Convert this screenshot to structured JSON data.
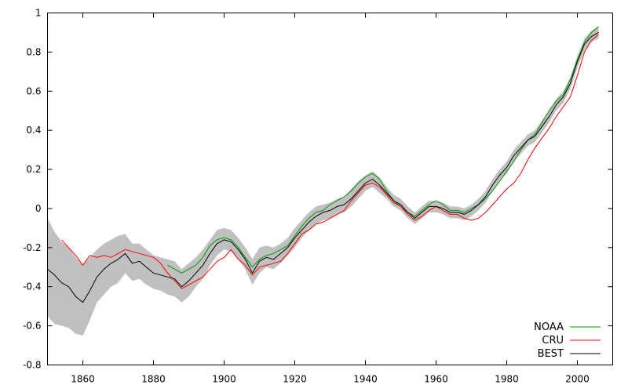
{
  "chart_data": {
    "type": "line",
    "title": "",
    "xlabel": "",
    "ylabel": "",
    "xlim": [
      1850,
      2010
    ],
    "ylim": [
      -0.8,
      1.0
    ],
    "grid": false,
    "legend_position": "bottom-right",
    "x_ticks": [
      "1860",
      "1880",
      "1900",
      "1920",
      "1940",
      "1960",
      "1980",
      "2000"
    ],
    "y_ticks": [
      "-0.8",
      "-0.6",
      "-0.4",
      "-0.2",
      "0",
      "0.2",
      "0.4",
      "0.6",
      "0.8",
      "1"
    ],
    "colors": {
      "NOAA": "#009900",
      "CRU": "#ff0000",
      "BEST": "#000000",
      "band": "#c0c0c0"
    },
    "series": [
      {
        "name": "NOAA",
        "x": [
          1884,
          1886,
          1888,
          1890,
          1892,
          1894,
          1896,
          1898,
          1900,
          1902,
          1904,
          1906,
          1908,
          1910,
          1912,
          1914,
          1916,
          1918,
          1920,
          1922,
          1924,
          1926,
          1928,
          1930,
          1932,
          1934,
          1936,
          1938,
          1940,
          1942,
          1944,
          1946,
          1948,
          1950,
          1952,
          1954,
          1956,
          1958,
          1960,
          1962,
          1964,
          1966,
          1968,
          1970,
          1972,
          1974,
          1976,
          1978,
          1980,
          1982,
          1984,
          1986,
          1988,
          1990,
          1992,
          1994,
          1996,
          1998,
          2000,
          2002,
          2004,
          2006
        ],
        "y": [
          -0.29,
          -0.31,
          -0.33,
          -0.31,
          -0.29,
          -0.25,
          -0.19,
          -0.16,
          -0.15,
          -0.16,
          -0.2,
          -0.25,
          -0.3,
          -0.26,
          -0.24,
          -0.23,
          -0.21,
          -0.19,
          -0.14,
          -0.09,
          -0.05,
          -0.02,
          -0.01,
          0.02,
          0.04,
          0.06,
          0.09,
          0.13,
          0.16,
          0.18,
          0.15,
          0.09,
          0.04,
          0.01,
          -0.02,
          -0.04,
          -0.01,
          0.02,
          0.04,
          0.02,
          -0.01,
          -0.01,
          -0.02,
          0.0,
          0.02,
          0.05,
          0.09,
          0.14,
          0.19,
          0.24,
          0.3,
          0.35,
          0.38,
          0.44,
          0.5,
          0.55,
          0.58,
          0.66,
          0.76,
          0.85,
          0.9,
          0.93
        ]
      },
      {
        "name": "CRU",
        "x": [
          1850,
          1852,
          1854,
          1856,
          1858,
          1860,
          1862,
          1864,
          1866,
          1868,
          1870,
          1872,
          1874,
          1876,
          1878,
          1880,
          1882,
          1884,
          1886,
          1888,
          1890,
          1892,
          1894,
          1896,
          1898,
          1900,
          1902,
          1904,
          1906,
          1908,
          1910,
          1912,
          1914,
          1916,
          1918,
          1920,
          1922,
          1924,
          1926,
          1928,
          1930,
          1932,
          1934,
          1936,
          1938,
          1940,
          1942,
          1944,
          1946,
          1948,
          1950,
          1952,
          1954,
          1956,
          1958,
          1960,
          1962,
          1964,
          1966,
          1968,
          1970,
          1972,
          1974,
          1976,
          1978,
          1980,
          1982,
          1984,
          1986,
          1988,
          1990,
          1992,
          1994,
          1996,
          1998,
          2000,
          2002,
          2004,
          2006
        ],
        "y": [
          null,
          null,
          -0.16,
          -0.2,
          -0.24,
          -0.29,
          -0.24,
          -0.25,
          -0.24,
          -0.25,
          -0.23,
          -0.21,
          -0.22,
          -0.23,
          -0.24,
          -0.25,
          -0.28,
          -0.33,
          -0.37,
          -0.41,
          -0.39,
          -0.37,
          -0.35,
          -0.31,
          -0.27,
          -0.25,
          -0.21,
          -0.26,
          -0.29,
          -0.34,
          -0.3,
          -0.29,
          -0.28,
          -0.27,
          -0.23,
          -0.18,
          -0.13,
          -0.11,
          -0.08,
          -0.07,
          -0.05,
          -0.03,
          -0.01,
          0.04,
          0.08,
          0.12,
          0.13,
          0.11,
          0.07,
          0.03,
          0.01,
          -0.03,
          -0.06,
          -0.04,
          -0.01,
          0.01,
          -0.01,
          -0.03,
          -0.03,
          -0.05,
          -0.06,
          -0.05,
          -0.02,
          0.02,
          0.06,
          0.1,
          0.13,
          0.18,
          0.25,
          0.31,
          0.36,
          0.41,
          0.47,
          0.52,
          0.57,
          0.68,
          0.8,
          0.86,
          0.89
        ]
      },
      {
        "name": "BEST",
        "x": [
          1850,
          1852,
          1854,
          1856,
          1858,
          1860,
          1862,
          1864,
          1866,
          1868,
          1870,
          1872,
          1874,
          1876,
          1878,
          1880,
          1882,
          1884,
          1886,
          1888,
          1890,
          1892,
          1894,
          1896,
          1898,
          1900,
          1902,
          1904,
          1906,
          1908,
          1910,
          1912,
          1914,
          1916,
          1918,
          1920,
          1922,
          1924,
          1926,
          1928,
          1930,
          1932,
          1934,
          1936,
          1938,
          1940,
          1942,
          1944,
          1946,
          1948,
          1950,
          1952,
          1954,
          1956,
          1958,
          1960,
          1962,
          1964,
          1966,
          1968,
          1970,
          1972,
          1974,
          1976,
          1978,
          1980,
          1982,
          1984,
          1986,
          1988,
          1990,
          1992,
          1994,
          1996,
          1998,
          2000,
          2002,
          2004,
          2006
        ],
        "y": [
          -0.31,
          -0.34,
          -0.38,
          -0.4,
          -0.45,
          -0.48,
          -0.42,
          -0.35,
          -0.31,
          -0.28,
          -0.26,
          -0.23,
          -0.28,
          -0.27,
          -0.3,
          -0.33,
          -0.34,
          -0.35,
          -0.36,
          -0.4,
          -0.37,
          -0.33,
          -0.29,
          -0.23,
          -0.18,
          -0.16,
          -0.17,
          -0.21,
          -0.26,
          -0.33,
          -0.27,
          -0.25,
          -0.26,
          -0.23,
          -0.2,
          -0.15,
          -0.11,
          -0.07,
          -0.04,
          -0.02,
          -0.01,
          0.01,
          0.02,
          0.05,
          0.09,
          0.13,
          0.15,
          0.12,
          0.08,
          0.04,
          0.02,
          -0.02,
          -0.05,
          -0.02,
          0.01,
          0.01,
          0.0,
          -0.02,
          -0.02,
          -0.03,
          -0.01,
          0.02,
          0.06,
          0.12,
          0.17,
          0.21,
          0.27,
          0.31,
          0.35,
          0.37,
          0.42,
          0.47,
          0.53,
          0.57,
          0.64,
          0.75,
          0.84,
          0.88,
          0.9
        ]
      }
    ],
    "uncertainty_band": {
      "series": "BEST",
      "x": [
        1850,
        1852,
        1854,
        1856,
        1858,
        1860,
        1862,
        1864,
        1866,
        1868,
        1870,
        1872,
        1874,
        1876,
        1878,
        1880,
        1882,
        1884,
        1886,
        1888,
        1890,
        1892,
        1894,
        1896,
        1898,
        1900,
        1902,
        1904,
        1906,
        1908,
        1910,
        1912,
        1914,
        1916,
        1918,
        1920,
        1922,
        1924,
        1926,
        1928,
        1930,
        1932,
        1934,
        1936,
        1938,
        1940,
        1942,
        1944,
        1946,
        1948,
        1950,
        1952,
        1954,
        1956,
        1958,
        1960,
        1962,
        1964,
        1966,
        1968,
        1970,
        1972,
        1974,
        1976,
        1978,
        1980,
        1982,
        1984,
        1986,
        1988,
        1990,
        1992,
        1994,
        1996,
        1998,
        2000,
        2002,
        2004,
        2006
      ],
      "lower": [
        -0.55,
        -0.59,
        -0.6,
        -0.61,
        -0.64,
        -0.65,
        -0.57,
        -0.48,
        -0.44,
        -0.4,
        -0.38,
        -0.33,
        -0.37,
        -0.36,
        -0.39,
        -0.41,
        -0.42,
        -0.44,
        -0.45,
        -0.48,
        -0.45,
        -0.4,
        -0.36,
        -0.29,
        -0.24,
        -0.21,
        -0.22,
        -0.26,
        -0.31,
        -0.39,
        -0.33,
        -0.3,
        -0.31,
        -0.28,
        -0.24,
        -0.2,
        -0.15,
        -0.11,
        -0.08,
        -0.06,
        -0.05,
        -0.03,
        -0.02,
        0.01,
        0.05,
        0.09,
        0.11,
        0.08,
        0.05,
        0.01,
        -0.01,
        -0.05,
        -0.08,
        -0.05,
        -0.02,
        -0.02,
        -0.03,
        -0.05,
        -0.05,
        -0.06,
        -0.04,
        -0.01,
        0.03,
        0.09,
        0.14,
        0.18,
        0.24,
        0.28,
        0.32,
        0.34,
        0.39,
        0.44,
        0.5,
        0.54,
        0.61,
        0.72,
        0.81,
        0.85,
        0.87
      ],
      "upper": [
        -0.05,
        -0.12,
        -0.17,
        -0.2,
        -0.25,
        -0.29,
        -0.25,
        -0.21,
        -0.18,
        -0.16,
        -0.14,
        -0.13,
        -0.18,
        -0.18,
        -0.21,
        -0.24,
        -0.25,
        -0.26,
        -0.27,
        -0.31,
        -0.28,
        -0.25,
        -0.21,
        -0.16,
        -0.11,
        -0.1,
        -0.11,
        -0.15,
        -0.2,
        -0.26,
        -0.2,
        -0.19,
        -0.2,
        -0.18,
        -0.15,
        -0.1,
        -0.06,
        -0.02,
        0.01,
        0.02,
        0.03,
        0.05,
        0.06,
        0.1,
        0.14,
        0.17,
        0.19,
        0.16,
        0.11,
        0.07,
        0.05,
        0.01,
        -0.02,
        0.01,
        0.04,
        0.04,
        0.03,
        0.01,
        0.01,
        0.0,
        0.02,
        0.05,
        0.09,
        0.15,
        0.2,
        0.24,
        0.3,
        0.34,
        0.38,
        0.4,
        0.45,
        0.5,
        0.56,
        0.6,
        0.67,
        0.78,
        0.87,
        0.91,
        0.93
      ]
    }
  }
}
